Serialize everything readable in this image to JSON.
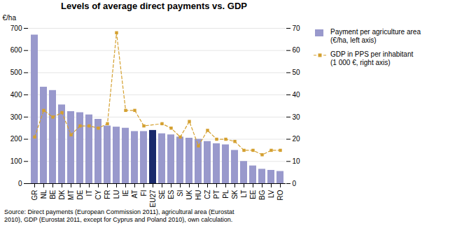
{
  "chart_data": {
    "type": "bar",
    "title": "Levels of average direct payments vs. GDP",
    "categories": [
      "GR",
      "NL",
      "BE",
      "DK",
      "MT",
      "DE",
      "IT",
      "CY",
      "FR",
      "LU",
      "IE",
      "AT",
      "FI",
      "EU27",
      "SE",
      "ES",
      "SI",
      "UK",
      "HU",
      "CZ",
      "PT",
      "PL",
      "SK",
      "LT",
      "EE",
      "BG",
      "LV",
      "RO"
    ],
    "series": [
      {
        "name": "Payment per agriculture area\n(€/ha, left axis)",
        "type": "bar",
        "color": "#9999cc",
        "colors": [
          "#9999cc",
          "#9999cc",
          "#9999cc",
          "#9999cc",
          "#9999cc",
          "#9999cc",
          "#9999cc",
          "#9999cc",
          "#9999cc",
          "#9999cc",
          "#9999cc",
          "#9999cc",
          "#9999cc",
          "#1a2a6c",
          "#9999cc",
          "#9999cc",
          "#9999cc",
          "#9999cc",
          "#9999cc",
          "#9999cc",
          "#9999cc",
          "#9999cc",
          "#9999cc",
          "#9999cc",
          "#9999cc",
          "#9999cc",
          "#9999cc",
          "#9999cc"
        ],
        "values": [
          670,
          435,
          420,
          355,
          325,
          320,
          310,
          290,
          260,
          255,
          250,
          235,
          235,
          240,
          225,
          220,
          210,
          205,
          200,
          190,
          180,
          175,
          150,
          100,
          80,
          65,
          60,
          55
        ]
      },
      {
        "name": "GDP in PPS per inhabitant\n(1 000 €, right axis)",
        "type": "line",
        "axis": "y2",
        "color": "#d4a030",
        "marker": "square",
        "line_style": "dashed",
        "values": [
          21,
          33,
          30,
          32,
          22,
          26,
          26,
          25,
          27,
          68,
          33,
          33,
          26,
          null,
          27,
          25,
          21,
          28,
          17,
          24,
          20,
          20,
          19,
          15,
          15,
          13,
          15,
          15
        ]
      }
    ],
    "ylabel": "€/ha",
    "ylim": [
      0,
      700
    ],
    "yticks": [
      0,
      100,
      200,
      300,
      400,
      500,
      600,
      700
    ],
    "y2lim": [
      0,
      70
    ],
    "y2ticks": [
      0,
      10,
      20,
      30,
      40,
      50,
      60,
      70
    ],
    "grid": true,
    "legend": "right",
    "annotation": "Source: Direct payments (European Commission 2011), agricultural area (Eurostat\n2010), GDP (Eurostat 2011, except for Cyprus and Poland 2010), own calculation."
  }
}
